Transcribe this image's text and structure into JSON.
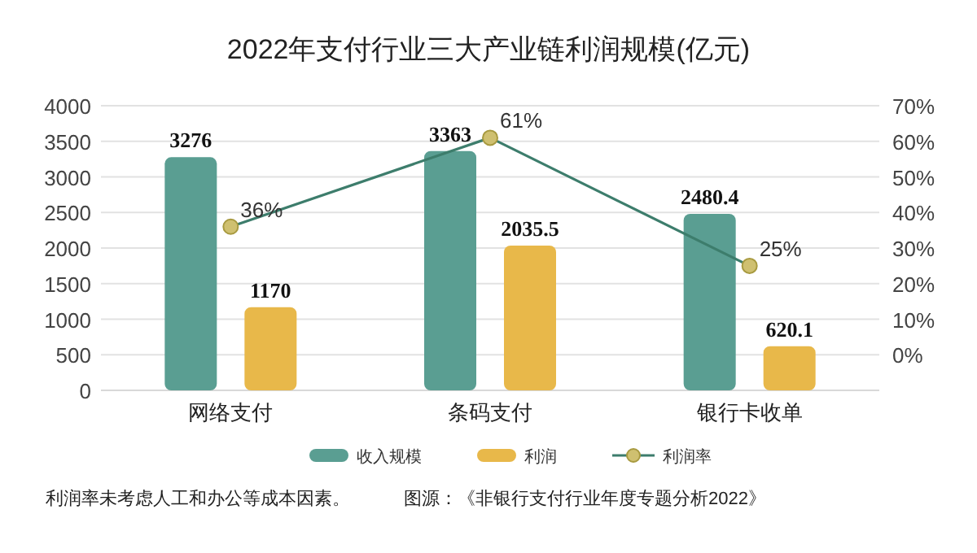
{
  "chart_data": {
    "type": "bar",
    "title": "2022年支付行业三大产业链利润规模(亿元)",
    "categories": [
      "网络支付",
      "条码支付",
      "银行卡收单"
    ],
    "series": [
      {
        "name": "收入规模",
        "color": "#5a9e92",
        "values": [
          3276,
          3363,
          2480.4
        ],
        "value_labels": [
          "3276",
          "3363",
          "2480.4"
        ]
      },
      {
        "name": "利润",
        "color": "#e8b84a",
        "values": [
          1170,
          2035.5,
          620.1
        ],
        "value_labels": [
          "1170",
          "2035.5",
          "620.1"
        ]
      },
      {
        "name": "利润率",
        "type": "line",
        "axis": "y2",
        "color": "#3d7d6c",
        "marker": "circle",
        "values": [
          36,
          61,
          25
        ],
        "value_labels": [
          "36%",
          "61%",
          "25%"
        ]
      }
    ],
    "ylim": [
      0,
      4000
    ],
    "yticks": [
      0,
      500,
      1000,
      1500,
      2000,
      2500,
      3000,
      3500,
      4000
    ],
    "y2lim": [
      -10,
      70
    ],
    "y2ticks": [
      {
        "value": 0,
        "label": "0%"
      },
      {
        "value": 10,
        "label": "10%"
      },
      {
        "value": 20,
        "label": "20%"
      },
      {
        "value": 30,
        "label": "30%"
      },
      {
        "value": 40,
        "label": "40%"
      },
      {
        "value": 50,
        "label": "50%"
      },
      {
        "value": 60,
        "label": "60%"
      },
      {
        "value": 70,
        "label": "70%"
      }
    ],
    "grid": "y",
    "legend": "bottom",
    "annotations": [
      "利润率未考虑人工和办公等成本因素。",
      "图源：《非银行支付行业年度专题分析2022》"
    ]
  }
}
